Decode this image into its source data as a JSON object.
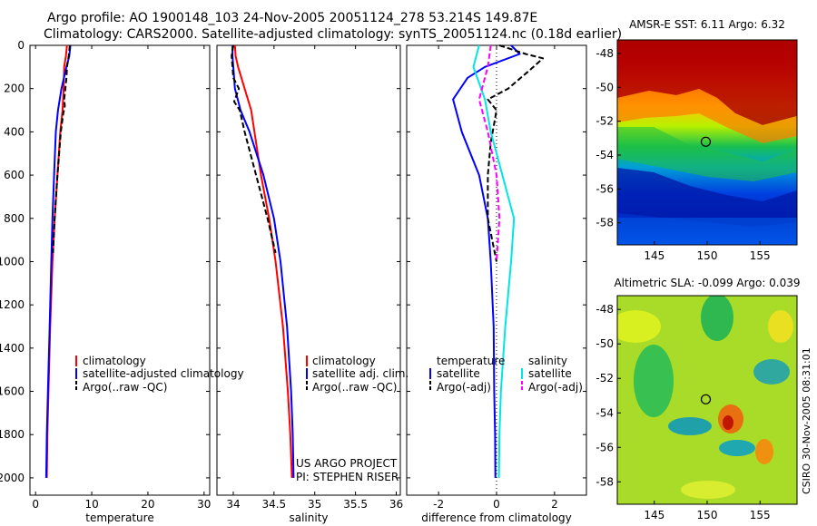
{
  "header": {
    "line1": "Argo profile: AO 1900148_103 24-Nov-2005 20051124_278 53.214S 149.87E",
    "line2": "Climatology: CARS2000. Satellite-adjusted climatology: synTS_20051124.nc (0.18d earlier)"
  },
  "footer_stamp": "CSIRO 30-Nov-2005 08:31:01",
  "credit": {
    "line1": "US ARGO PROJECT",
    "line2": "PI: STEPHEN RISER"
  },
  "colors": {
    "climatology": "#ff0000",
    "satellite": "#0000ff",
    "argo": "#000000",
    "sat_salinity": "#00e5e5",
    "argo_salinity": "#ff00ff"
  },
  "chart_data": [
    {
      "type": "line",
      "xlabel": "temperature",
      "ylabel": "",
      "xlim": [
        -1,
        31
      ],
      "ylim": [
        2080,
        0
      ],
      "xticks": [
        0,
        10,
        20,
        30
      ],
      "yticks": [
        0,
        200,
        400,
        600,
        800,
        1000,
        1200,
        1400,
        1600,
        1800,
        2000
      ],
      "legend": [
        "climatology",
        "satellite-adjusted climatology",
        "Argo(..raw -QC)"
      ],
      "series": [
        {
          "name": "climatology",
          "color": "#ff0000",
          "dash": "solid",
          "points": [
            [
              5.6,
              0
            ],
            [
              5.4,
              50
            ],
            [
              5.1,
              100
            ],
            [
              5.0,
              200
            ],
            [
              4.8,
              300
            ],
            [
              4.4,
              400
            ],
            [
              3.9,
              600
            ],
            [
              3.4,
              800
            ],
            [
              3.0,
              1000
            ],
            [
              2.6,
              1300
            ],
            [
              2.3,
              1600
            ],
            [
              2.1,
              1800
            ],
            [
              2.0,
              2000
            ]
          ]
        },
        {
          "name": "satellite-adjusted climatology",
          "color": "#0000ff",
          "dash": "solid",
          "points": [
            [
              6.2,
              0
            ],
            [
              6.0,
              50
            ],
            [
              5.5,
              100
            ],
            [
              4.6,
              200
            ],
            [
              4.0,
              300
            ],
            [
              3.6,
              400
            ],
            [
              3.3,
              600
            ],
            [
              3.0,
              800
            ],
            [
              2.8,
              1000
            ],
            [
              2.5,
              1300
            ],
            [
              2.2,
              1600
            ],
            [
              2.0,
              1800
            ],
            [
              1.9,
              2000
            ]
          ]
        },
        {
          "name": "Argo(..raw -QC)",
          "color": "#000000",
          "dash": "dashed",
          "points": [
            [
              6.1,
              0
            ],
            [
              5.9,
              50
            ],
            [
              5.6,
              100
            ],
            [
              5.5,
              150
            ],
            [
              5.3,
              200
            ],
            [
              5.1,
              250
            ],
            [
              5.2,
              280
            ],
            [
              4.9,
              320
            ],
            [
              4.5,
              400
            ],
            [
              3.9,
              600
            ],
            [
              3.4,
              800
            ],
            [
              3.1,
              960
            ]
          ]
        }
      ]
    },
    {
      "type": "line",
      "xlabel": "salinity",
      "ylabel": "",
      "xlim": [
        33.8,
        36.05
      ],
      "ylim": [
        2080,
        0
      ],
      "xticks": [
        34,
        34.5,
        35,
        35.5,
        36
      ],
      "yticks": [
        0,
        200,
        400,
        600,
        800,
        1000,
        1200,
        1400,
        1600,
        1800,
        2000
      ],
      "legend": [
        "climatology",
        "satellite adj. clim.",
        "Argo(..raw -QC)"
      ],
      "series": [
        {
          "name": "climatology",
          "color": "#ff0000",
          "dash": "solid",
          "points": [
            [
              34.02,
              0
            ],
            [
              34.03,
              50
            ],
            [
              34.06,
              100
            ],
            [
              34.14,
              200
            ],
            [
              34.22,
              300
            ],
            [
              34.26,
              400
            ],
            [
              34.34,
              600
            ],
            [
              34.44,
              800
            ],
            [
              34.52,
              1000
            ],
            [
              34.61,
              1300
            ],
            [
              34.67,
              1600
            ],
            [
              34.7,
              1800
            ],
            [
              34.72,
              2000
            ]
          ]
        },
        {
          "name": "satellite adj. clim.",
          "color": "#0000ff",
          "dash": "solid",
          "points": [
            [
              33.99,
              0
            ],
            [
              33.99,
              50
            ],
            [
              34.0,
              100
            ],
            [
              34.02,
              200
            ],
            [
              34.09,
              300
            ],
            [
              34.2,
              400
            ],
            [
              34.37,
              600
            ],
            [
              34.5,
              800
            ],
            [
              34.58,
              1000
            ],
            [
              34.66,
              1300
            ],
            [
              34.71,
              1600
            ],
            [
              34.73,
              1800
            ],
            [
              34.74,
              2000
            ]
          ]
        },
        {
          "name": "Argo(..raw -QC)",
          "color": "#000000",
          "dash": "dashed",
          "points": [
            [
              34.0,
              0
            ],
            [
              33.98,
              50
            ],
            [
              33.99,
              100
            ],
            [
              34.0,
              150
            ],
            [
              34.07,
              200
            ],
            [
              34.01,
              260
            ],
            [
              34.08,
              300
            ],
            [
              34.14,
              400
            ],
            [
              34.28,
              600
            ],
            [
              34.42,
              800
            ],
            [
              34.52,
              960
            ]
          ]
        }
      ]
    },
    {
      "type": "line",
      "xlabel": "difference from climatology",
      "ylabel": "",
      "xlim": [
        -3.1,
        3.1
      ],
      "ylim": [
        2080,
        0
      ],
      "xticks": [
        -2,
        0,
        2
      ],
      "yticks": [
        0,
        200,
        400,
        600,
        800,
        1000,
        1200,
        1400,
        1600,
        1800,
        2000
      ],
      "legend_groups": [
        {
          "heading": "temperature",
          "entries": [
            "satellite",
            "Argo(-adj)"
          ]
        },
        {
          "heading": "salinity",
          "entries": [
            "satellite",
            "Argo(-adj)"
          ]
        }
      ],
      "series": [
        {
          "name": "satellite",
          "group": "temperature",
          "color": "#0000ff",
          "dash": "solid",
          "points": [
            [
              0.5,
              0
            ],
            [
              0.8,
              40
            ],
            [
              -0.4,
              100
            ],
            [
              -1.0,
              150
            ],
            [
              -1.5,
              250
            ],
            [
              -1.2,
              400
            ],
            [
              -0.6,
              600
            ],
            [
              -0.3,
              800
            ],
            [
              -0.2,
              1000
            ],
            [
              -0.1,
              1300
            ],
            [
              -0.08,
              1600
            ],
            [
              -0.05,
              1800
            ],
            [
              -0.04,
              2000
            ]
          ]
        },
        {
          "name": "Argo(-adj)",
          "group": "temperature",
          "color": "#000000",
          "dash": "dashed",
          "points": [
            [
              0.1,
              0
            ],
            [
              1.0,
              40
            ],
            [
              1.6,
              60
            ],
            [
              1.1,
              120
            ],
            [
              0.4,
              200
            ],
            [
              -0.3,
              250
            ],
            [
              0.0,
              300
            ],
            [
              -0.2,
              450
            ],
            [
              -0.3,
              600
            ],
            [
              -0.3,
              800
            ],
            [
              0.0,
              1000
            ]
          ]
        },
        {
          "name": "satellite",
          "group": "salinity",
          "color": "#00e5e5",
          "dash": "solid",
          "points": [
            [
              -0.6,
              0
            ],
            [
              -0.8,
              100
            ],
            [
              -0.4,
              250
            ],
            [
              -0.2,
              400
            ],
            [
              0.2,
              600
            ],
            [
              0.6,
              800
            ],
            [
              0.5,
              1000
            ],
            [
              0.3,
              1300
            ],
            [
              0.15,
              1600
            ],
            [
              0.1,
              1800
            ],
            [
              0.08,
              2000
            ]
          ]
        },
        {
          "name": "Argo(-adj)",
          "group": "salinity",
          "color": "#ff00ff",
          "dash": "dashed",
          "points": [
            [
              -0.2,
              0
            ],
            [
              -0.3,
              100
            ],
            [
              -0.6,
              250
            ],
            [
              -0.3,
              400
            ],
            [
              0.0,
              600
            ],
            [
              0.1,
              800
            ],
            [
              0.0,
              1000
            ]
          ]
        }
      ]
    },
    {
      "type": "heatmap",
      "title": "AMSR-E SST: 6.11 Argo: 6.32",
      "xlim": [
        141.5,
        158.5
      ],
      "ylim": [
        -59.3,
        -47.2
      ],
      "xticks": [
        145,
        150,
        155
      ],
      "yticks": [
        -48,
        -50,
        -52,
        -54,
        -56,
        -58
      ],
      "marker": {
        "lon": 149.87,
        "lat": -53.214
      }
    },
    {
      "type": "heatmap",
      "title": "Altimetric SLA: -0.099 Argo: 0.039",
      "xlim": [
        141.5,
        158.5
      ],
      "ylim": [
        -59.3,
        -47.2
      ],
      "xticks": [
        145,
        150,
        155
      ],
      "yticks": [
        -48,
        -50,
        -52,
        -54,
        -56,
        -58
      ],
      "marker": {
        "lon": 149.87,
        "lat": -53.214
      }
    }
  ]
}
